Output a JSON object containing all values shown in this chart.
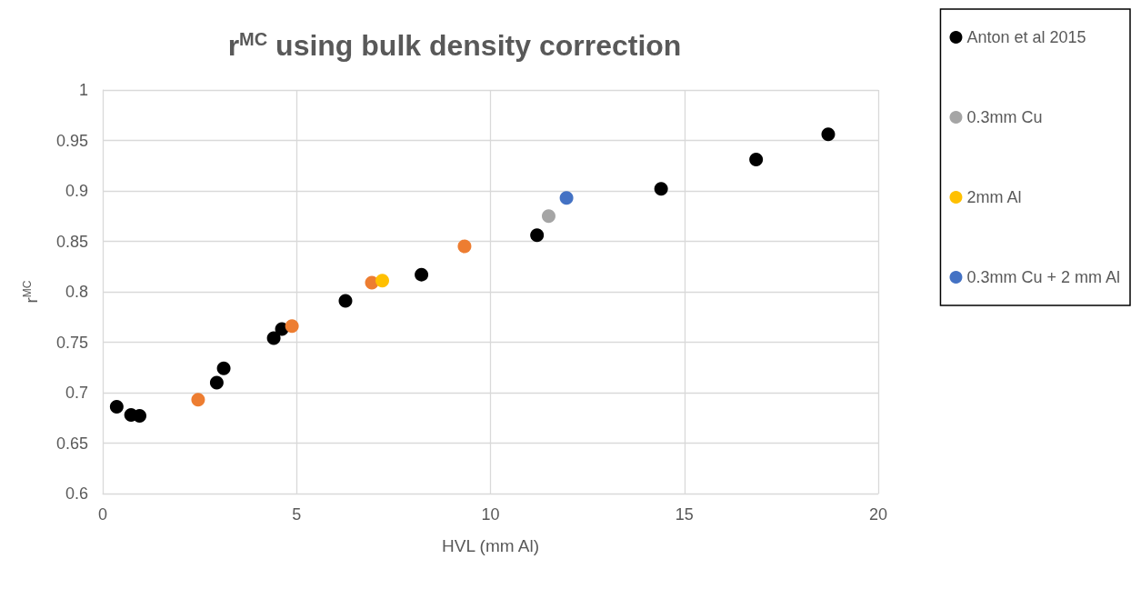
{
  "chart_data": {
    "type": "scatter",
    "title": "r$^{MC}$ using bulk density correction",
    "xlabel": "HVL (mm Al)",
    "ylabel": "r$^{MC}$",
    "xlim": [
      0,
      20
    ],
    "xticks": [
      0,
      5,
      10,
      15,
      20
    ],
    "ylim": [
      0.6,
      1
    ],
    "yticks": [
      0.6,
      0.65,
      0.7,
      0.75,
      0.8,
      0.85,
      0.9,
      0.95,
      1
    ],
    "grid": true,
    "legend": "right",
    "marker": "circle",
    "series": [
      {
        "name": "Anton et al 2015",
        "color": "#000000",
        "x": [
          0.36,
          0.73,
          0.95,
          2.94,
          3.12,
          4.41,
          4.62,
          6.26,
          8.22,
          11.2,
          14.4,
          16.85,
          18.71
        ],
        "values": [
          0.686,
          0.678,
          0.677,
          0.71,
          0.724,
          0.754,
          0.763,
          0.791,
          0.817,
          0.856,
          0.902,
          0.931,
          0.956
        ]
      },
      {
        "color": "#ed7d31",
        "x": [
          2.46,
          4.88,
          6.94,
          9.33
        ],
        "values": [
          0.693,
          0.766,
          0.809,
          0.845
        ]
      },
      {
        "name": "0.3mm Cu",
        "color": "#a5a5a5",
        "x": [
          11.5
        ],
        "values": [
          0.875
        ]
      },
      {
        "name": "2mm Al",
        "color": "#ffc000",
        "x": [
          7.21
        ],
        "values": [
          0.811
        ]
      },
      {
        "name": "0.3mm Cu + 2 mm Al",
        "color": "#4472c4",
        "x": [
          11.96
        ],
        "values": [
          0.893
        ]
      }
    ]
  }
}
